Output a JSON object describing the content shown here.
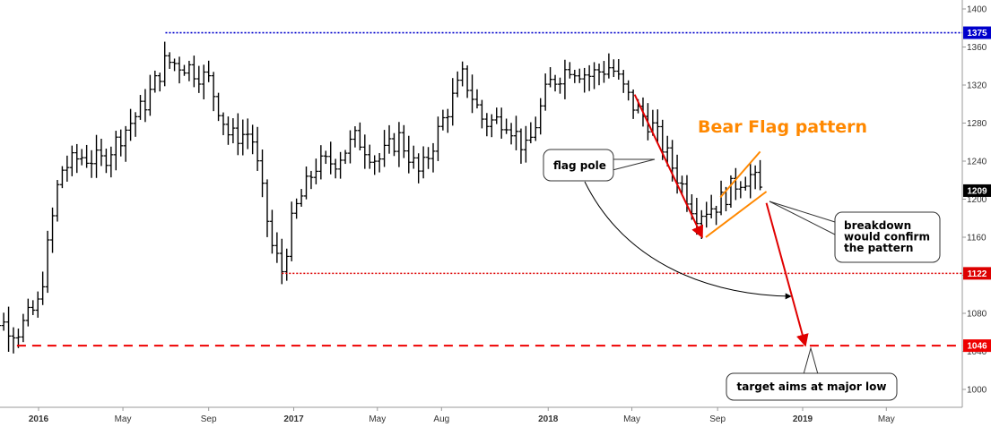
{
  "chart_data": {
    "type": "ohlc",
    "title": "Bear Flag pattern",
    "y_ticks": [
      1000,
      1040,
      1080,
      1120,
      1160,
      1200,
      1240,
      1280,
      1320,
      1360,
      1400
    ],
    "ylim": [
      980,
      1410
    ],
    "x_ticks": [
      {
        "label": "2016",
        "bold": true,
        "date": "2016-01-01"
      },
      {
        "label": "May",
        "bold": false,
        "date": "2016-05-01"
      },
      {
        "label": "Sep",
        "bold": false,
        "date": "2016-09-01"
      },
      {
        "label": "2017",
        "bold": true,
        "date": "2017-01-01"
      },
      {
        "label": "May",
        "bold": false,
        "date": "2017-05-01"
      },
      {
        "label": "Aug",
        "bold": false,
        "date": "2017-08-01"
      },
      {
        "label": "2018",
        "bold": true,
        "date": "2018-01-01"
      },
      {
        "label": "May",
        "bold": false,
        "date": "2018-05-01"
      },
      {
        "label": "Sep",
        "bold": false,
        "date": "2018-09-01"
      },
      {
        "label": "2019",
        "bold": true,
        "date": "2019-01-01"
      },
      {
        "label": "May",
        "bold": false,
        "date": "2019-05-01"
      }
    ],
    "xlim": [
      "2015-10-01",
      "2019-09-01"
    ],
    "price_points": [
      [
        "2015-10-01",
        1085
      ],
      [
        "2015-11-01",
        1075
      ],
      [
        "2015-12-01",
        1060
      ],
      [
        "2016-01-01",
        1090
      ],
      [
        "2016-02-01",
        1230
      ],
      [
        "2016-03-01",
        1245
      ],
      [
        "2016-04-01",
        1240
      ],
      [
        "2016-05-01",
        1270
      ],
      [
        "2016-06-01",
        1300
      ],
      [
        "2016-07-01",
        1345
      ],
      [
        "2016-08-01",
        1340
      ],
      [
        "2016-09-01",
        1325
      ],
      [
        "2016-10-01",
        1265
      ],
      [
        "2016-11-01",
        1270
      ],
      [
        "2016-12-01",
        1150
      ],
      [
        "2016-12-15",
        1125
      ],
      [
        "2017-01-01",
        1185
      ],
      [
        "2017-02-01",
        1235
      ],
      [
        "2017-03-01",
        1240
      ],
      [
        "2017-04-01",
        1265
      ],
      [
        "2017-05-01",
        1240
      ],
      [
        "2017-06-01",
        1265
      ],
      [
        "2017-07-01",
        1225
      ],
      [
        "2017-08-01",
        1280
      ],
      [
        "2017-09-01",
        1330
      ],
      [
        "2017-10-01",
        1280
      ],
      [
        "2017-11-01",
        1285
      ],
      [
        "2017-12-01",
        1250
      ],
      [
        "2018-01-01",
        1320
      ],
      [
        "2018-02-01",
        1340
      ],
      [
        "2018-03-01",
        1330
      ],
      [
        "2018-04-01",
        1340
      ],
      [
        "2018-05-01",
        1300
      ],
      [
        "2018-06-01",
        1275
      ],
      [
        "2018-07-01",
        1230
      ],
      [
        "2018-08-01",
        1185
      ],
      [
        "2018-09-01",
        1195
      ],
      [
        "2018-10-01",
        1220
      ],
      [
        "2018-10-20",
        1225
      ],
      [
        "2018-11-01",
        1209
      ]
    ],
    "levels": [
      {
        "value": 1375,
        "label": "1375",
        "color": "#0000cc",
        "style": "dotted",
        "start": "2016-07-01"
      },
      {
        "value": 1209,
        "label": "1209",
        "color": "#000000",
        "style": "none",
        "start": "2018-11-01"
      },
      {
        "value": 1122,
        "label": "1122",
        "color": "#dd0000",
        "style": "dotted",
        "start": "2016-12-15"
      },
      {
        "value": 1046,
        "label": "1046",
        "color": "#ee0000",
        "style": "dashed",
        "start": "2015-12-01"
      }
    ],
    "flag_channel": {
      "upper": [
        [
          "2018-09-05",
          1202
        ],
        [
          "2018-11-01",
          1250
        ]
      ],
      "lower": [
        [
          "2018-08-15",
          1160
        ],
        [
          "2018-11-10",
          1208
        ]
      ],
      "color": "#ff8800"
    },
    "pole_arrow": [
      [
        "2018-05-05",
        1310
      ],
      [
        "2018-08-10",
        1160
      ]
    ],
    "projection_arrow": [
      [
        "2018-11-10",
        1196
      ],
      [
        "2019-01-05",
        1046
      ]
    ],
    "annotations": [
      {
        "text": [
          "flag pole"
        ]
      },
      {
        "text": [
          "breakdown",
          "would confirm",
          "the pattern"
        ]
      },
      {
        "text": [
          "target aims at major low"
        ]
      }
    ]
  },
  "colors": {
    "bars": "#000000",
    "pattern": "#ff8800",
    "bearish_arrow": "#e00000",
    "grid": "#dddddd"
  }
}
